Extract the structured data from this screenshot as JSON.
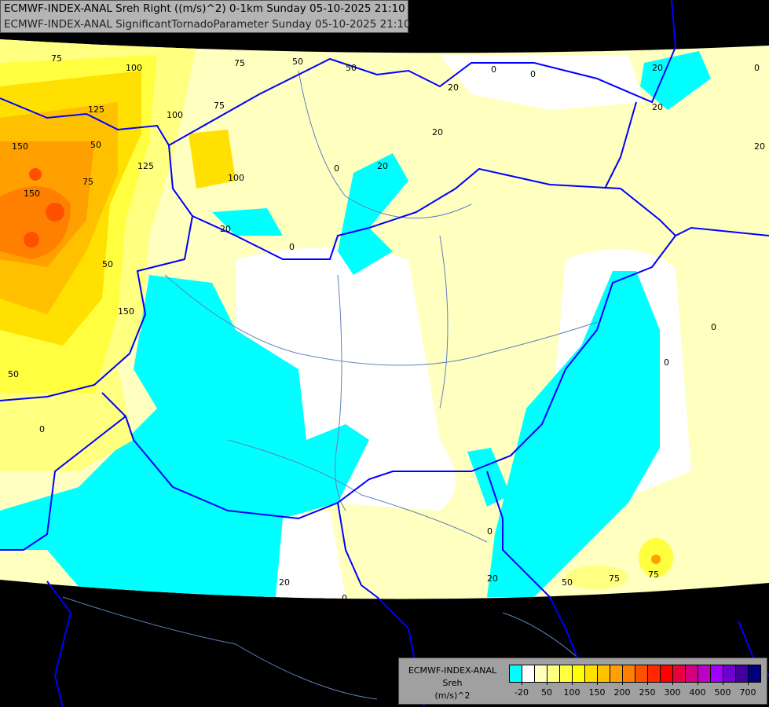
{
  "header": {
    "line1": "ECMWF-INDEX-ANAL Sreh Right ((m/s)^2) 0-1km Sunday 05-10-2025 21:10",
    "line2": "ECMWF-INDEX-ANAL SignificantTornadoParameter Sunday 05-10-2025 21:10"
  },
  "legend": {
    "model": "ECMWF-INDEX-ANAL",
    "variable": "Sreh",
    "unit": "(m/s)^2",
    "colors": [
      "#00ffff",
      "#ffffff",
      "#ffffc0",
      "#ffff80",
      "#ffff40",
      "#ffff00",
      "#ffe000",
      "#ffc000",
      "#ffa000",
      "#ff8000",
      "#ff5000",
      "#ff2800",
      "#ff0000",
      "#e80040",
      "#d00080",
      "#c000c0",
      "#a000ff",
      "#7000d0",
      "#4000a0",
      "#000080"
    ],
    "tick_labels": [
      "-20",
      "50",
      "100",
      "150",
      "200",
      "250",
      "300",
      "400",
      "500",
      "700"
    ]
  },
  "contour_labels": [
    "75",
    "100",
    "50",
    "50",
    "20",
    "0",
    "0",
    "20",
    "0",
    "20",
    "75",
    "75",
    "125",
    "150",
    "100",
    "75",
    "50",
    "125",
    "100",
    "150",
    "20",
    "0",
    "150",
    "50",
    "0",
    "0",
    "0",
    "50",
    "20",
    "20",
    "20",
    "0",
    "0",
    "20",
    "75",
    "75",
    "0",
    "20",
    "50"
  ],
  "colors": {
    "background": "#000000",
    "border_country": "#0000ff",
    "river": "#6080c0",
    "cyan": "#00ffff",
    "pale": "#ffffc0"
  }
}
